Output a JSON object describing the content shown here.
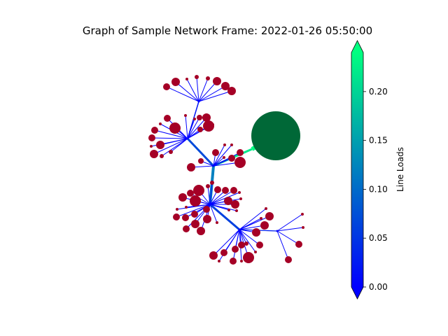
{
  "chart_data": {
    "type": "network",
    "title": "Graph of Sample Network Frame: 2022-01-26 05:50:00",
    "colorbar": {
      "label": "Line Loads",
      "range": [
        0.0,
        0.24
      ],
      "ticks": [
        0.0,
        0.05,
        0.1,
        0.15,
        0.2
      ],
      "tick_labels": [
        "0.00",
        "0.05",
        "0.10",
        "0.15",
        "0.20"
      ],
      "colormap": [
        "#0000ff",
        "#00ff80"
      ],
      "extend": "both"
    },
    "node_color": "#a50026",
    "grid_node_color": "#006837",
    "line_load_max_observed": 0.24
  }
}
